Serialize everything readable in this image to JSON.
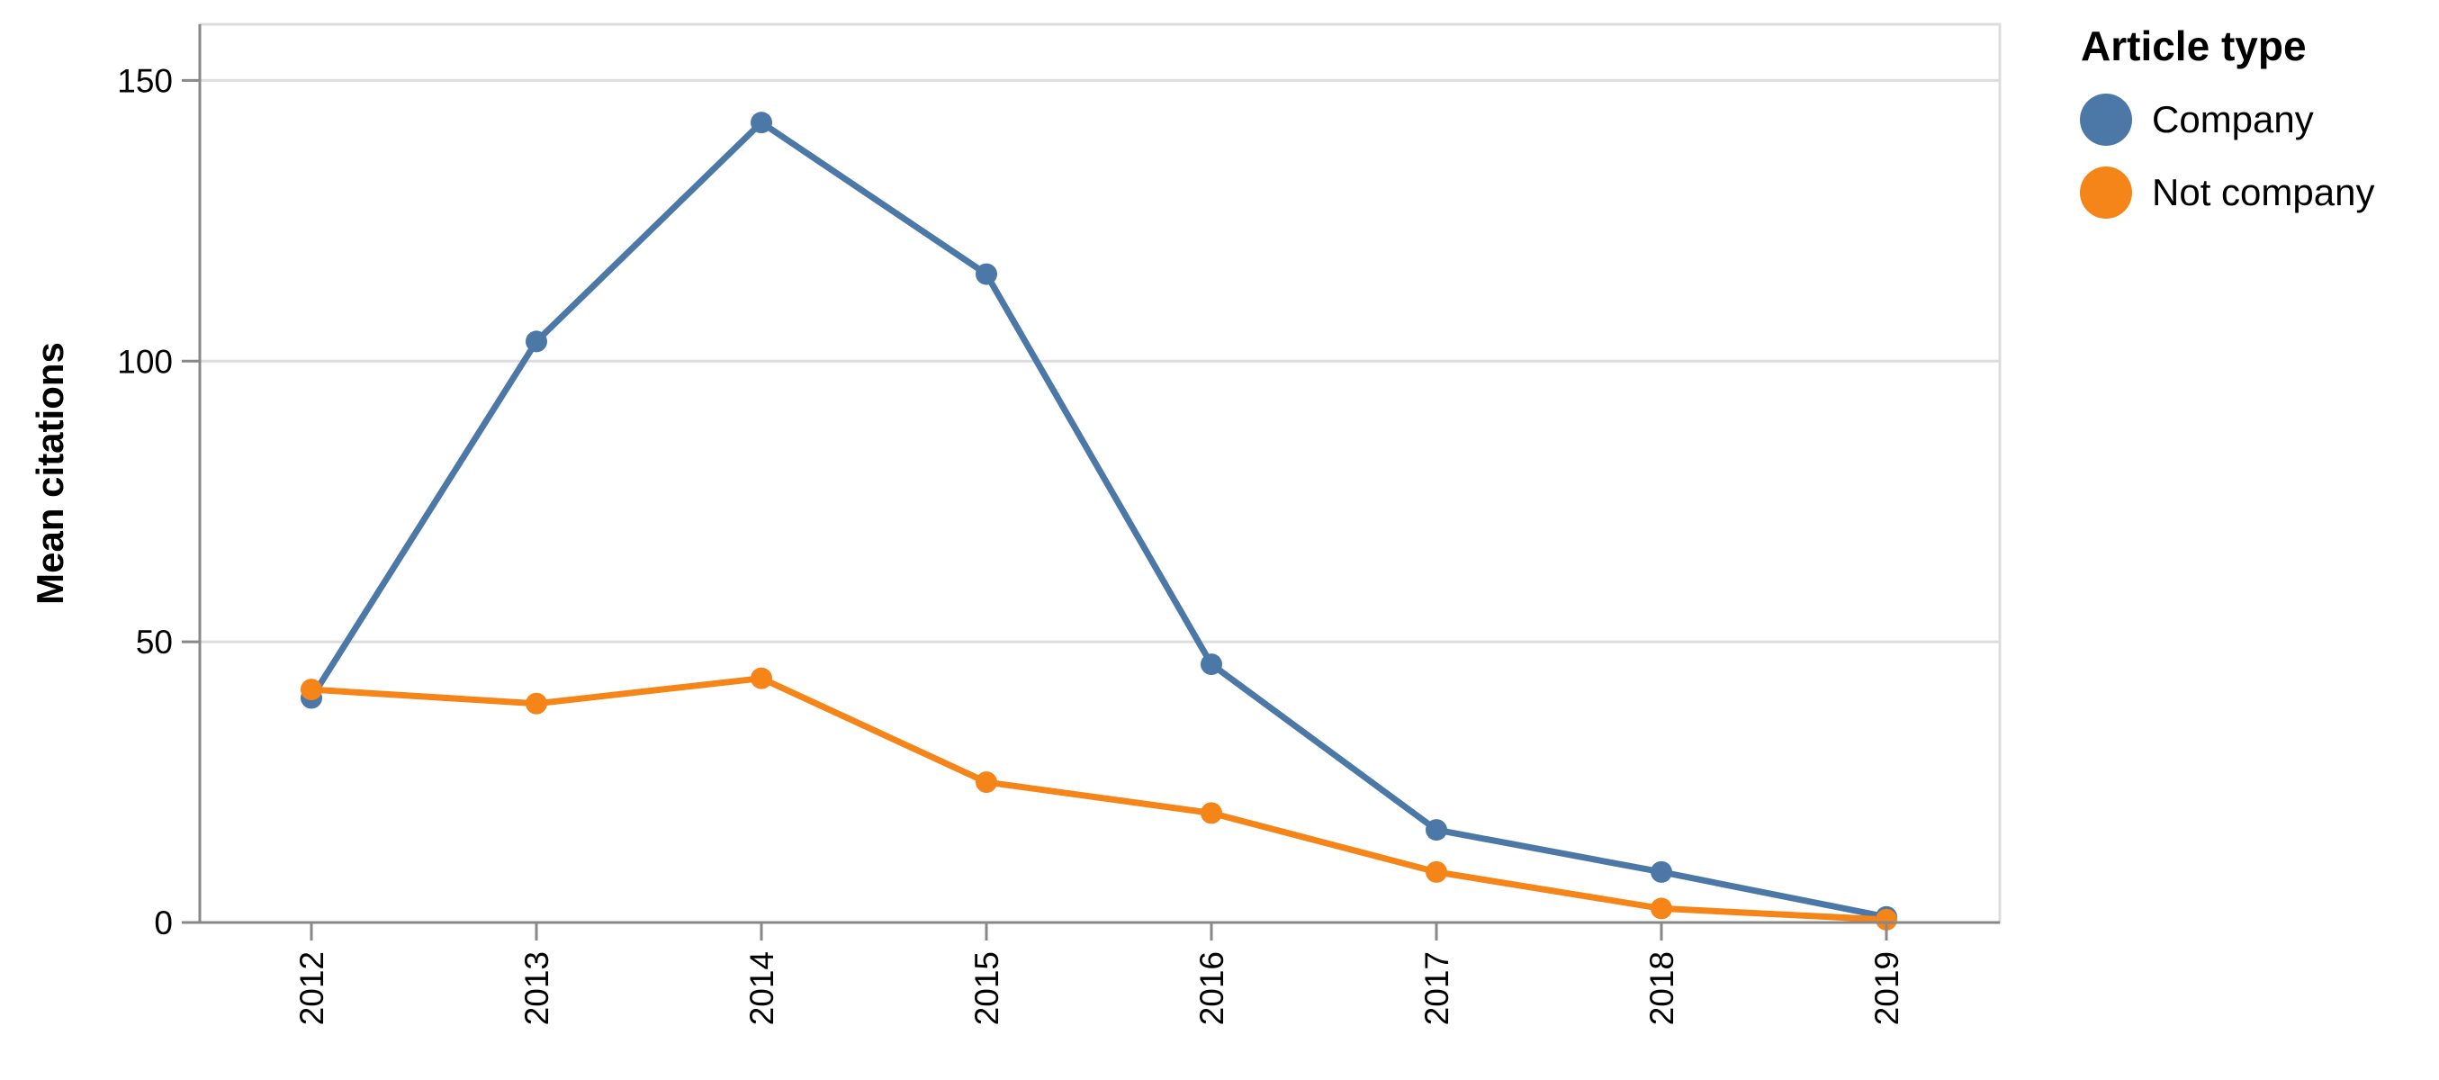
{
  "chart_data": {
    "type": "line",
    "title": "",
    "xlabel": "",
    "ylabel": "Mean citations",
    "x": [
      "2012",
      "2013",
      "2014",
      "2015",
      "2016",
      "2017",
      "2018",
      "2019"
    ],
    "ylim": [
      0,
      160
    ],
    "yticks": [
      0,
      50,
      100,
      150
    ],
    "grid": true,
    "legend": {
      "title": "Article type",
      "placement": "right"
    },
    "series": [
      {
        "name": "Company",
        "color": "#4c78a8",
        "values": [
          40,
          103.5,
          142.5,
          115.5,
          46,
          16.5,
          9,
          1
        ]
      },
      {
        "name": "Not company",
        "color": "#f58518",
        "values": [
          41.5,
          39,
          43.5,
          25,
          19.5,
          9,
          2.5,
          0.5
        ]
      }
    ]
  }
}
